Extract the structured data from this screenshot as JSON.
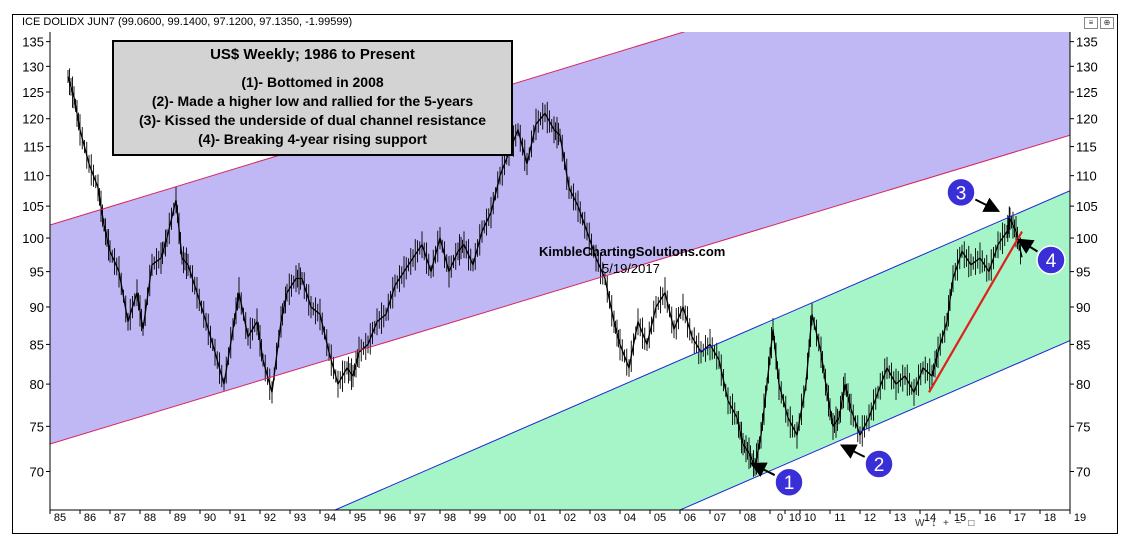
{
  "header": {
    "text": "ICE DOLIDX JUN7 (99.0600, 99.1400, 97.1200, 97.1350, -1.99599)"
  },
  "annotation_box": {
    "title": "US$ Weekly; 1986 to Present",
    "lines": [
      "(1)- Bottomed in 2008",
      "(2)- Made a higher low and rallied for the 5-years",
      "(3)- Kissed the underside of dual channel resistance",
      "(4)- Breaking 4-year rising support"
    ]
  },
  "watermark": {
    "site": "KimbleChartingSolutions.com",
    "date": "5/19/2017"
  },
  "toolbar_icons": [
    "menu-icon",
    "zoom-icon"
  ],
  "bottom_controls": [
    "W",
    "↕",
    "+",
    "−",
    "□"
  ],
  "colors": {
    "purple_channel": "#c0b7f5",
    "green_channel": "#a6f5c9",
    "purple_lines": "#d6245e",
    "green_lines": "#1d25d6",
    "support_line": "#e0201a",
    "marker": "#3a2fd6",
    "price": "#000000"
  },
  "chart_data": {
    "type": "line",
    "title": "US$ Weekly; 1986 to Present",
    "xlabel": "",
    "ylabel": "",
    "log_scale": true,
    "xlim": [
      1985,
      2019
    ],
    "ylim": [
      66,
      137
    ],
    "y_ticks": [
      70,
      75,
      80,
      85,
      90,
      95,
      100,
      105,
      110,
      115,
      120,
      125,
      130,
      135
    ],
    "x_ticks": [
      {
        "x": 1985,
        "label": "85"
      },
      {
        "x": 1986,
        "label": "86"
      },
      {
        "x": 1987,
        "label": "87"
      },
      {
        "x": 1988,
        "label": "88"
      },
      {
        "x": 1989,
        "label": "89"
      },
      {
        "x": 1990,
        "label": "90"
      },
      {
        "x": 1991,
        "label": "91"
      },
      {
        "x": 1992,
        "label": "92"
      },
      {
        "x": 1993,
        "label": "93"
      },
      {
        "x": 1994,
        "label": "94"
      },
      {
        "x": 1995,
        "label": "95"
      },
      {
        "x": 1996,
        "label": "96"
      },
      {
        "x": 1997,
        "label": "97"
      },
      {
        "x": 1998,
        "label": "98"
      },
      {
        "x": 1999,
        "label": "99"
      },
      {
        "x": 2000,
        "label": "00"
      },
      {
        "x": 2001,
        "label": "01"
      },
      {
        "x": 2002,
        "label": "02"
      },
      {
        "x": 2003,
        "label": "03"
      },
      {
        "x": 2004,
        "label": "04"
      },
      {
        "x": 2005,
        "label": "05"
      },
      {
        "x": 2006,
        "label": "06"
      },
      {
        "x": 2007,
        "label": "07"
      },
      {
        "x": 2008,
        "label": "08"
      },
      {
        "x": 2009,
        "label": "0"
      },
      {
        "x": 2010,
        "label": "10"
      },
      {
        "x": 2011,
        "label": "11"
      },
      {
        "x": 2012,
        "label": "12"
      },
      {
        "x": 2013,
        "label": "13"
      },
      {
        "x": 2014,
        "label": "14"
      },
      {
        "x": 2015,
        "label": "15"
      },
      {
        "x": 2016,
        "label": "16"
      },
      {
        "x": 2017,
        "label": "17"
      },
      {
        "x": 2018,
        "label": "18"
      },
      {
        "x": 2019,
        "label": "19"
      }
    ],
    "x_tick_extra": {
      "x": 2009.5,
      "label": "10"
    },
    "series": [
      {
        "x": [
          1985.6,
          1985.8,
          1986.0,
          1986.3,
          1986.6,
          1986.8,
          1987.0,
          1987.3,
          1987.6,
          1987.9,
          1988.1,
          1988.4,
          1988.7,
          1988.9,
          1989.2,
          1989.4,
          1989.6,
          1989.9,
          1990.2,
          1990.5,
          1990.8,
          1991.1,
          1991.3,
          1991.6,
          1991.9,
          1992.1,
          1992.4,
          1992.7,
          1992.9,
          1993.2,
          1993.4,
          1993.7,
          1994.0,
          1994.3,
          1994.6,
          1994.9,
          1995.1,
          1995.3,
          1995.6,
          1995.9,
          1996.2,
          1996.5,
          1996.8,
          1997.1,
          1997.4,
          1997.7,
          1998.0,
          1998.3,
          1998.6,
          1998.8,
          1999.1,
          1999.4,
          1999.7,
          2000.0,
          2000.3,
          2000.6,
          2000.9,
          2001.2,
          2001.5,
          2001.8,
          2002.0,
          2002.3,
          2002.6,
          2002.9,
          2003.2,
          2003.5,
          2003.8,
          2004.0,
          2004.3,
          2004.6,
          2004.9,
          2005.2,
          2005.5,
          2005.8,
          2006.1,
          2006.4,
          2006.7,
          2007.0,
          2007.3,
          2007.6,
          2007.9,
          2008.1,
          2008.3,
          2008.5,
          2008.7,
          2008.9,
          2009.1,
          2009.3,
          2009.6,
          2009.9,
          2010.2,
          2010.4,
          2010.7,
          2010.9,
          2011.1,
          2011.3,
          2011.5,
          2011.7,
          2012.0,
          2012.3,
          2012.6,
          2012.9,
          2013.2,
          2013.5,
          2013.8,
          2014.1,
          2014.4,
          2014.6,
          2014.9,
          2015.1,
          2015.4,
          2015.7,
          2016.0,
          2016.3,
          2016.6,
          2016.9,
          2017.0,
          2017.2,
          2017.4
        ],
        "values": [
          128,
          124,
          118,
          112,
          108,
          102,
          98,
          95,
          88,
          92,
          87,
          96,
          97,
          100,
          106,
          97,
          96,
          92,
          88,
          84,
          80,
          87,
          92,
          86,
          88,
          83,
          79,
          88,
          92,
          94,
          94,
          90,
          89,
          84,
          80,
          82,
          81,
          84,
          85,
          88,
          89,
          93,
          95,
          97,
          99,
          95,
          100,
          95,
          98,
          99,
          96,
          101,
          104,
          110,
          114,
          118,
          112,
          119,
          121,
          118,
          117,
          108,
          105,
          101,
          97,
          94,
          88,
          85,
          82,
          88,
          85,
          90,
          92,
          87,
          90,
          86,
          84,
          85,
          83,
          78,
          76,
          73,
          72,
          70.5,
          74,
          80,
          87,
          80,
          76,
          74,
          80,
          89,
          84,
          79,
          75,
          76,
          80,
          77,
          74,
          76,
          79,
          82,
          80,
          81,
          79,
          82,
          81,
          84,
          88,
          94,
          98,
          96,
          97,
          95,
          99,
          101,
          103,
          101,
          97.1
        ]
      }
    ],
    "channels": [
      {
        "name": "purple-upper",
        "x": [
          1985,
          2019
        ],
        "y": [
          102,
          164
        ]
      },
      {
        "name": "purple-lower",
        "x": [
          1985,
          2019
        ],
        "y": [
          73,
          117
        ]
      },
      {
        "name": "green-upper",
        "x": [
          1994.5,
          2019
        ],
        "y": [
          66,
          107.5
        ]
      },
      {
        "name": "green-lower",
        "x": [
          2006,
          2019
        ],
        "y": [
          66,
          85.5
        ]
      },
      {
        "name": "support-line",
        "x": [
          2014.3,
          2017.4
        ],
        "y": [
          79,
          101
        ]
      }
    ],
    "markers": [
      {
        "label": "1",
        "x": 2008.3,
        "y": 71,
        "dx": 40,
        "dy": 20
      },
      {
        "label": "2",
        "x": 2011.3,
        "y": 73,
        "dx": 40,
        "dy": 20
      },
      {
        "label": "3",
        "x": 2016.7,
        "y": 104,
        "dx": -40,
        "dy": -20
      },
      {
        "label": "4",
        "x": 2017.2,
        "y": 100,
        "dx": 35,
        "dy": 22
      }
    ]
  }
}
